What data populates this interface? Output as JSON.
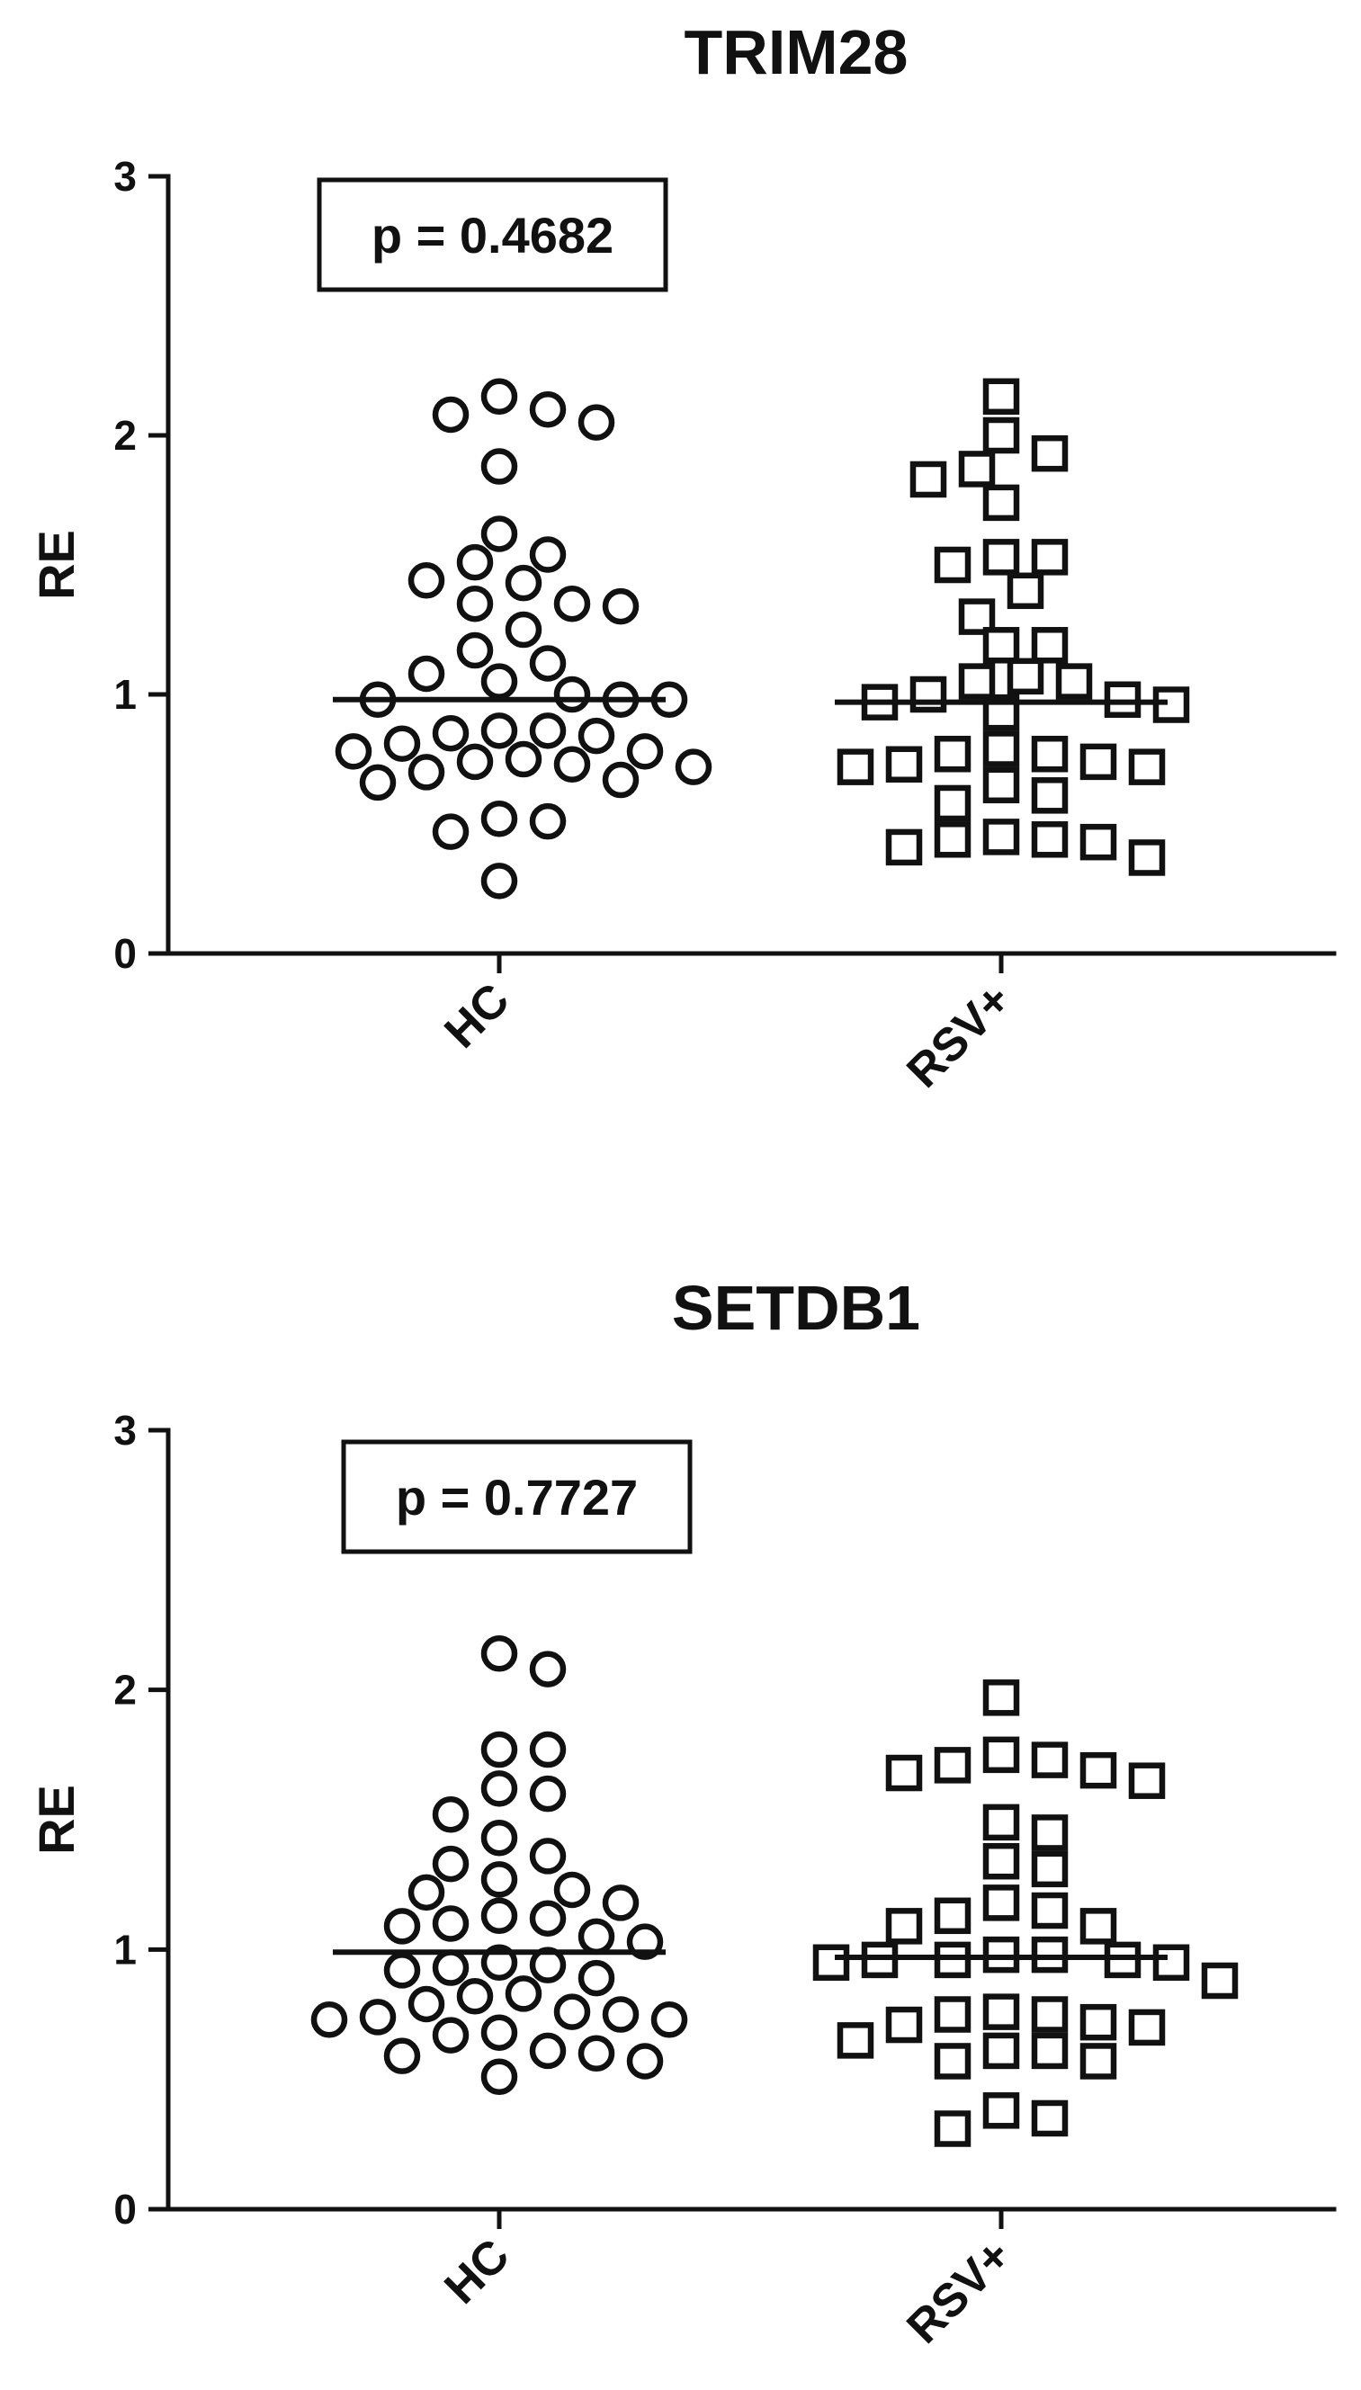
{
  "chart_data": [
    {
      "type": "scatter",
      "title": "TRIM28",
      "ylabel": "RE",
      "ylim": [
        0,
        3
      ],
      "yticks": [
        "0",
        "1",
        "2",
        "3"
      ],
      "categories": [
        "HC",
        "RSV+"
      ],
      "annotation": "p = 0.4682",
      "grid": false,
      "series": [
        {
          "category": "HC",
          "marker": "circle",
          "mean": 0.98,
          "values": [
            2.15,
            2.1,
            2.08,
            2.05,
            1.88,
            1.62,
            1.54,
            1.51,
            1.44,
            1.43,
            1.35,
            1.35,
            1.34,
            1.25,
            1.17,
            1.12,
            1.08,
            1.05,
            1.0,
            0.98,
            0.98,
            0.98,
            0.86,
            0.86,
            0.85,
            0.84,
            0.81,
            0.78,
            0.78,
            0.75,
            0.74,
            0.73,
            0.72,
            0.7,
            0.67,
            0.66,
            0.52,
            0.51,
            0.47,
            0.28
          ]
        },
        {
          "category": "RSV+",
          "marker": "square",
          "mean": 0.97,
          "values": [
            2.15,
            2.0,
            1.93,
            1.87,
            1.83,
            1.74,
            1.53,
            1.53,
            1.5,
            1.4,
            1.3,
            1.19,
            1.19,
            1.07,
            1.05,
            1.05,
            1.0,
            0.98,
            0.97,
            0.96,
            0.93,
            0.79,
            0.77,
            0.77,
            0.74,
            0.73,
            0.72,
            0.72,
            0.65,
            0.61,
            0.58,
            0.45,
            0.44,
            0.44,
            0.43,
            0.41,
            0.37
          ]
        }
      ]
    },
    {
      "type": "scatter",
      "title": "SETDB1",
      "ylabel": "RE",
      "ylim": [
        0,
        3
      ],
      "yticks": [
        "0",
        "1",
        "2",
        "3"
      ],
      "categories": [
        "HC",
        "RSV+"
      ],
      "annotation": "p = 0.7727",
      "grid": false,
      "series": [
        {
          "category": "HC",
          "marker": "circle",
          "mean": 0.99,
          "values": [
            2.14,
            2.08,
            1.77,
            1.77,
            1.62,
            1.6,
            1.52,
            1.43,
            1.36,
            1.33,
            1.27,
            1.23,
            1.22,
            1.18,
            1.13,
            1.12,
            1.1,
            1.09,
            1.05,
            1.03,
            0.95,
            0.94,
            0.93,
            0.92,
            0.89,
            0.83,
            0.82,
            0.79,
            0.76,
            0.75,
            0.74,
            0.73,
            0.73,
            0.68,
            0.67,
            0.61,
            0.6,
            0.59,
            0.57,
            0.51
          ]
        },
        {
          "category": "RSV+",
          "marker": "square",
          "mean": 0.97,
          "values": [
            1.97,
            1.75,
            1.73,
            1.71,
            1.69,
            1.68,
            1.65,
            1.49,
            1.45,
            1.34,
            1.31,
            1.18,
            1.15,
            1.13,
            1.09,
            1.09,
            0.98,
            0.98,
            0.96,
            0.96,
            0.96,
            0.95,
            0.95,
            0.88,
            0.76,
            0.75,
            0.75,
            0.72,
            0.71,
            0.7,
            0.65,
            0.61,
            0.61,
            0.57,
            0.57,
            0.38,
            0.35,
            0.31
          ]
        }
      ]
    }
  ]
}
